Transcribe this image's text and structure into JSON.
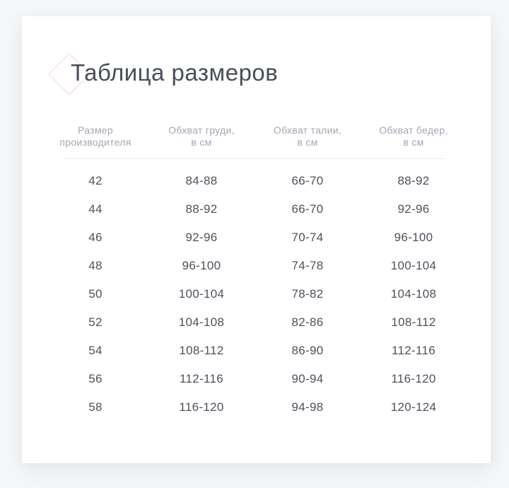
{
  "page": {
    "background_color": "#f6f7f8",
    "card_color": "#ffffff"
  },
  "title": "Таблица размеров",
  "decor": {
    "diamond_icon_color": "#f3d9c9"
  },
  "table": {
    "columns": [
      {
        "label_line1": "Размер",
        "label_line2": "производителя"
      },
      {
        "label_line1": "Обхват груди,",
        "label_line2": "в см"
      },
      {
        "label_line1": "Обхват талии,",
        "label_line2": "в см"
      },
      {
        "label_line1": "Обхват бедер,",
        "label_line2": "в см"
      }
    ],
    "rows": [
      [
        "42",
        "84-88",
        "66-70",
        "88-92"
      ],
      [
        "44",
        "88-92",
        "66-70",
        "92-96"
      ],
      [
        "46",
        "92-96",
        "70-74",
        "96-100"
      ],
      [
        "48",
        "96-100",
        "74-78",
        "100-104"
      ],
      [
        "50",
        "100-104",
        "78-82",
        "104-108"
      ],
      [
        "52",
        "104-108",
        "82-86",
        "108-112"
      ],
      [
        "54",
        "108-112",
        "86-90",
        "112-116"
      ],
      [
        "56",
        "112-116",
        "90-94",
        "116-120"
      ],
      [
        "58",
        "116-120",
        "94-98",
        "120-124"
      ]
    ],
    "colors": {
      "header_text": "#a2a6b2",
      "cell_text": "#4c515d",
      "divider": "#e9eaee"
    }
  }
}
